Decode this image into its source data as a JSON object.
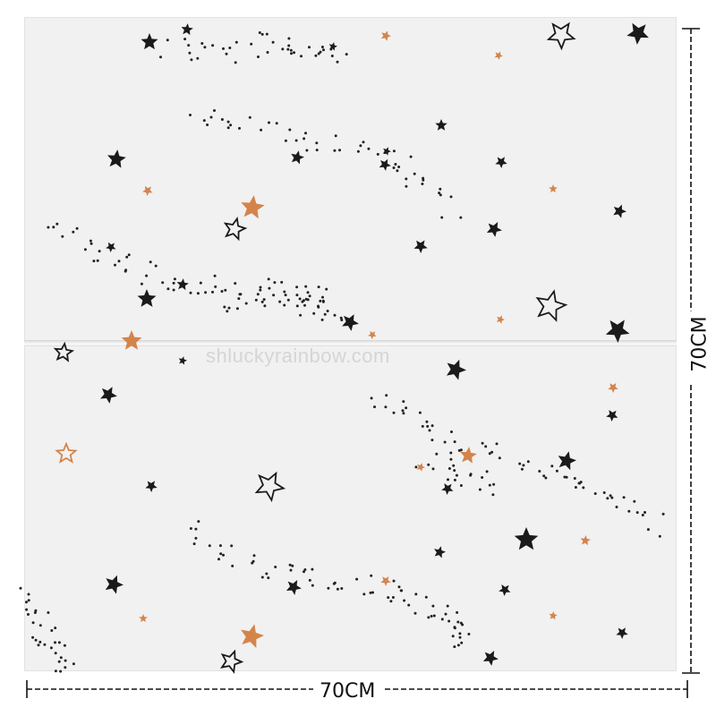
{
  "watermark": "shluckyrainbow.com",
  "dimensions": {
    "width_label": "70CM",
    "height_label": "70CM"
  },
  "colors": {
    "panel": "#f1f1f1",
    "star_black": "#1a1a1a",
    "star_orange": "#d4844b",
    "dot": "#222222"
  }
}
